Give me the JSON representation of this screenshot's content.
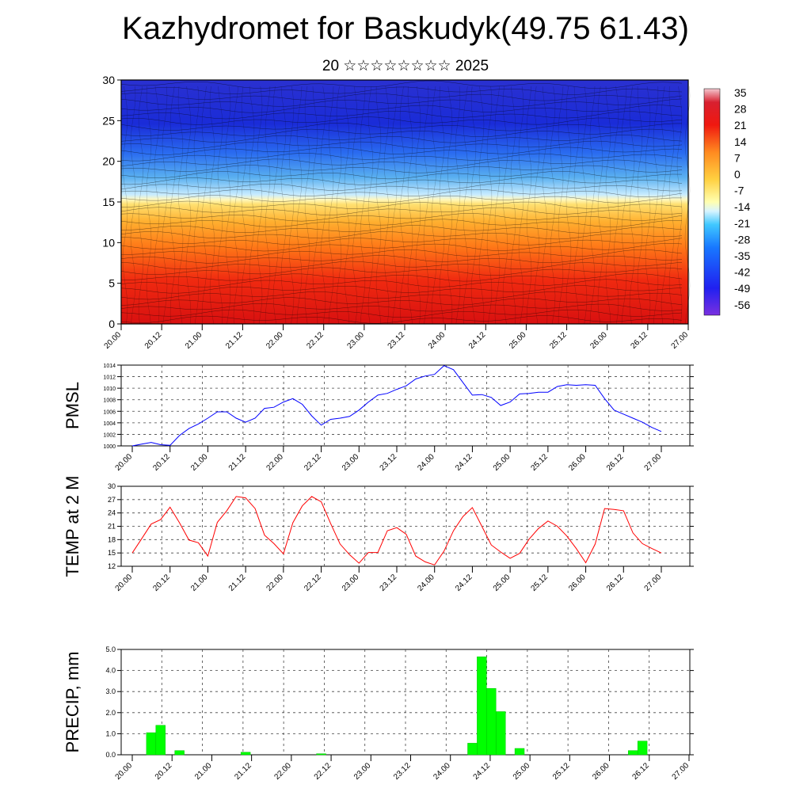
{
  "title": "Kazhydromet for Baskudyk(49.75 61.43)",
  "subtitle": "20 ☆☆☆☆☆☆☆☆ 2025",
  "chart_data": [
    {
      "type": "heatmap",
      "yticks": [
        "0",
        "5",
        "10",
        "15",
        "20",
        "25",
        "30"
      ],
      "ylim": [
        0,
        30
      ],
      "xticks": [
        "20.00",
        "20.12",
        "21.00",
        "21.12",
        "22.00",
        "22.12",
        "23.00",
        "23.12",
        "24.00",
        "24.12",
        "25.00",
        "25.12",
        "26.00",
        "26.12",
        "27.00"
      ],
      "colorbar_labels": [
        "35",
        "28",
        "21",
        "14",
        "7",
        "0",
        "-7",
        "-14",
        "-21",
        "-28",
        "-35",
        "-42",
        "-49",
        "-56"
      ],
      "colors": [
        "#f0c0c8",
        "#e01020",
        "#ff4a10",
        "#ff9a20",
        "#ffd740",
        "#ffffa0",
        "#c8f0ff",
        "#40c0ff",
        "#1e90ff",
        "#1050ff",
        "#2020e0",
        "#4020d0",
        "#8030e0"
      ]
    },
    {
      "type": "line",
      "ylabel": "PMSL",
      "ylim": [
        1000,
        1014
      ],
      "yticks": [
        "1000",
        "1002",
        "1004",
        "1006",
        "1008",
        "1010",
        "1012",
        "1014"
      ],
      "xticks": [
        "20.00",
        "20.12",
        "21.00",
        "21.12",
        "22.00",
        "22.12",
        "23.00",
        "23.12",
        "24.00",
        "24.12",
        "25.00",
        "25.12",
        "26.00",
        "26.12",
        "27.00"
      ],
      "color": "#0000ff",
      "values": [
        1000.0,
        1000.3,
        1000.6,
        1000.2,
        1000.1,
        1001.8,
        1003.0,
        1003.8,
        1004.8,
        1005.9,
        1005.9,
        1004.8,
        1004.1,
        1004.8,
        1006.5,
        1006.7,
        1007.6,
        1008.2,
        1007.2,
        1005.2,
        1003.6,
        1004.6,
        1004.8,
        1005.1,
        1006.2,
        1007.6,
        1008.8,
        1009.1,
        1009.8,
        1010.4,
        1011.6,
        1012.1,
        1012.4,
        1013.9,
        1013.2,
        1011.0,
        1008.8,
        1008.9,
        1008.4,
        1007.0,
        1007.6,
        1009.0,
        1009.1,
        1009.3,
        1009.3,
        1010.3,
        1010.6,
        1010.5,
        1010.6,
        1010.5,
        1008.2,
        1006.2,
        1005.5,
        1004.8,
        1004.1,
        1003.2,
        1002.5
      ]
    },
    {
      "type": "line",
      "ylabel": "TEMP at 2 M",
      "ylim": [
        12,
        30
      ],
      "yticks": [
        "12",
        "15",
        "18",
        "21",
        "24",
        "27",
        "30"
      ],
      "xticks": [
        "20.00",
        "20.12",
        "21.00",
        "21.12",
        "22.00",
        "22.12",
        "23.00",
        "23.12",
        "24.00",
        "24.12",
        "25.00",
        "25.12",
        "26.00",
        "26.12",
        "27.00"
      ],
      "color": "#ff0000",
      "values": [
        15.0,
        18.2,
        21.5,
        22.5,
        25.3,
        21.8,
        17.9,
        17.3,
        14.3,
        21.9,
        24.5,
        27.7,
        27.4,
        25.0,
        19.0,
        17.1,
        14.8,
        21.8,
        25.6,
        27.7,
        26.5,
        21.6,
        17.0,
        14.6,
        12.7,
        15.1,
        15.1,
        20.0,
        20.7,
        19.2,
        14.3,
        13.0,
        12.3,
        15.4,
        20.0,
        23.2,
        25.2,
        21.0,
        16.8,
        15.2,
        13.8,
        14.9,
        18.1,
        20.5,
        22.2,
        21.0,
        18.8,
        16.0,
        12.8,
        17.0,
        25.0,
        24.8,
        24.5,
        19.5,
        17.1,
        16.0,
        15.0
      ]
    },
    {
      "type": "bar",
      "ylabel": "PRECIP, mm",
      "ylim": [
        0,
        5
      ],
      "yticks": [
        "0.0",
        "1.0",
        "2.0",
        "3.0",
        "4.0",
        "5.0"
      ],
      "xticks": [
        "20.00",
        "20.12",
        "21.00",
        "21.12",
        "22.00",
        "22.12",
        "23.00",
        "23.12",
        "24.00",
        "24.12",
        "25.00",
        "25.12",
        "26.00",
        "26.12",
        "27.00"
      ],
      "color": "#00ff00",
      "values": [
        0,
        0,
        1.05,
        1.4,
        0,
        0.2,
        0,
        0,
        0,
        0,
        0,
        0,
        0.12,
        0,
        0,
        0,
        0,
        0,
        0,
        0,
        0.05,
        0,
        0,
        0,
        0,
        0,
        0,
        0,
        0,
        0,
        0,
        0,
        0,
        0,
        0,
        0,
        0.55,
        4.65,
        3.15,
        2.05,
        0,
        0.3,
        0,
        0,
        0,
        0,
        0,
        0,
        0,
        0,
        0,
        0,
        0,
        0.2,
        0.65,
        0,
        0
      ]
    }
  ]
}
